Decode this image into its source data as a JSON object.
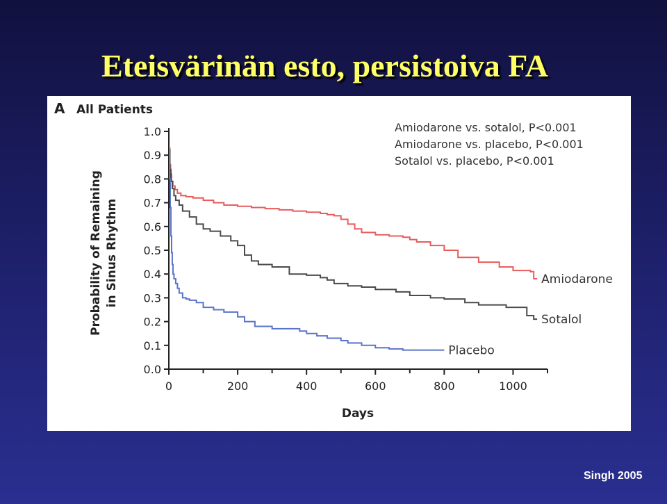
{
  "slide": {
    "title": "Eteisvärinän esto, persistoiva FA",
    "citation": "Singh 2005"
  },
  "chart_data": {
    "type": "line",
    "panel_letter": "A",
    "title": "All Patients",
    "xlabel": "Days",
    "ylabel_line1": "Probability of Remaining",
    "ylabel_line2": "in Sinus Rhythm",
    "xlim": [
      0,
      1100
    ],
    "ylim": [
      0,
      1.0
    ],
    "x_ticks": [
      0,
      200,
      400,
      600,
      800,
      1000
    ],
    "x_tick_labels": [
      "0",
      "200",
      "400",
      "600",
      "800",
      "1000"
    ],
    "y_ticks": [
      0.0,
      0.1,
      0.2,
      0.3,
      0.4,
      0.5,
      0.6,
      0.7,
      0.8,
      0.9,
      1.0
    ],
    "y_tick_labels": [
      "0.0",
      "0.1",
      "0.2",
      "0.3",
      "0.4",
      "0.5",
      "0.6",
      "0.7",
      "0.8",
      "0.9",
      "1.0"
    ],
    "grid": false,
    "annotations": [
      "Amiodarone vs. sotalol, P<0.001",
      "Amiodarone vs. placebo, P<0.001",
      "Sotalol vs. placebo, P<0.001"
    ],
    "series": [
      {
        "name": "Amiodarone",
        "color": "#e85c5c",
        "x": [
          0,
          3,
          5,
          8,
          12,
          18,
          25,
          35,
          50,
          70,
          100,
          130,
          160,
          200,
          240,
          280,
          320,
          360,
          400,
          440,
          460,
          480,
          500,
          520,
          540,
          560,
          600,
          640,
          680,
          700,
          720,
          760,
          800,
          840,
          900,
          960,
          1000,
          1050,
          1060,
          1070
        ],
        "y": [
          0.93,
          0.86,
          0.82,
          0.79,
          0.77,
          0.755,
          0.74,
          0.73,
          0.725,
          0.72,
          0.71,
          0.7,
          0.69,
          0.685,
          0.68,
          0.675,
          0.67,
          0.665,
          0.66,
          0.655,
          0.65,
          0.645,
          0.63,
          0.61,
          0.59,
          0.575,
          0.565,
          0.56,
          0.555,
          0.545,
          0.535,
          0.52,
          0.5,
          0.47,
          0.45,
          0.43,
          0.415,
          0.41,
          0.38,
          0.38
        ]
      },
      {
        "name": "Sotalol",
        "color": "#4a4a4a",
        "x": [
          0,
          3,
          6,
          10,
          15,
          20,
          30,
          40,
          60,
          80,
          100,
          120,
          150,
          180,
          200,
          220,
          240,
          260,
          300,
          350,
          400,
          440,
          460,
          480,
          520,
          560,
          600,
          660,
          700,
          760,
          800,
          860,
          900,
          980,
          1000,
          1040,
          1060,
          1070
        ],
        "y": [
          0.92,
          0.84,
          0.79,
          0.76,
          0.73,
          0.71,
          0.69,
          0.665,
          0.64,
          0.61,
          0.59,
          0.58,
          0.56,
          0.54,
          0.52,
          0.48,
          0.455,
          0.44,
          0.43,
          0.4,
          0.395,
          0.385,
          0.375,
          0.36,
          0.35,
          0.345,
          0.335,
          0.325,
          0.31,
          0.3,
          0.295,
          0.28,
          0.27,
          0.26,
          0.26,
          0.225,
          0.21,
          0.21
        ]
      },
      {
        "name": "Placebo",
        "color": "#5a74c8",
        "x": [
          0,
          2,
          4,
          6,
          8,
          10,
          12,
          15,
          20,
          25,
          30,
          40,
          50,
          60,
          80,
          100,
          130,
          160,
          200,
          220,
          250,
          300,
          380,
          400,
          430,
          460,
          500,
          520,
          560,
          580,
          600,
          640,
          680,
          700,
          740,
          760,
          800
        ],
        "y": [
          0.92,
          0.8,
          0.68,
          0.56,
          0.49,
          0.44,
          0.4,
          0.38,
          0.36,
          0.34,
          0.32,
          0.3,
          0.295,
          0.29,
          0.28,
          0.26,
          0.25,
          0.24,
          0.22,
          0.2,
          0.18,
          0.17,
          0.16,
          0.15,
          0.14,
          0.13,
          0.12,
          0.11,
          0.1,
          0.1,
          0.09,
          0.085,
          0.08,
          0.08,
          0.08,
          0.08,
          0.08
        ]
      }
    ]
  }
}
